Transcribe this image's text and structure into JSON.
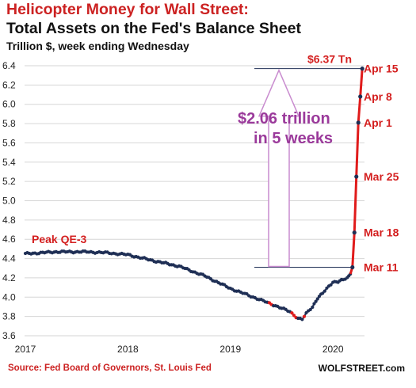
{
  "header": {
    "title": "Helicopter Money for Wall Street:",
    "title2": "Total Assets on the Fed's Balance Sheet",
    "subtitle": "Trillion $, week ending Wednesday"
  },
  "footer": {
    "source": "Source: Fed Board of Governors, St. Louis Fed",
    "brand": "WOLFSTREET.com"
  },
  "colors": {
    "line": "#1f2f55",
    "surge": "#e01b1b",
    "annotation_red": "#d41f1f",
    "arrow": "#c98ccf",
    "arrow_text": "#9b3a9b",
    "grid": "#d6d6d6"
  },
  "annotations": {
    "peak": "Peak QE-3",
    "top_value": "$6.37 Tn",
    "increase_line1": "$2.06 trillion",
    "increase_line2": "in 5 weeks"
  },
  "chart_data": {
    "type": "line",
    "title": "Total Assets on the Fed's Balance Sheet",
    "ylabel": "Trillion $, week ending Wednesday",
    "ylim": [
      3.6,
      6.4
    ],
    "yticks": [
      3.6,
      3.8,
      4.0,
      4.2,
      4.4,
      4.6,
      4.8,
      5.0,
      5.2,
      5.4,
      5.6,
      5.8,
      6.0,
      6.2,
      6.4
    ],
    "xlim": [
      2017.0,
      2020.3
    ],
    "xticks": [
      2017,
      2018,
      2019,
      2020
    ],
    "grid": true,
    "history_anchors": [
      [
        2017.0,
        4.45
      ],
      [
        2017.3,
        4.47
      ],
      [
        2017.6,
        4.47
      ],
      [
        2017.8,
        4.46
      ],
      [
        2018.0,
        4.44
      ],
      [
        2018.2,
        4.39
      ],
      [
        2018.5,
        4.32
      ],
      [
        2018.75,
        4.22
      ],
      [
        2019.0,
        4.09
      ],
      [
        2019.2,
        4.01
      ],
      [
        2019.42,
        3.92
      ],
      [
        2019.58,
        3.85
      ],
      [
        2019.66,
        3.78
      ],
      [
        2019.7,
        3.77
      ],
      [
        2019.74,
        3.83
      ],
      [
        2019.8,
        3.9
      ],
      [
        2019.85,
        3.99
      ],
      [
        2019.9,
        4.04
      ],
      [
        2020.0,
        4.16
      ],
      [
        2020.05,
        4.16
      ],
      [
        2020.1,
        4.18
      ],
      [
        2020.14,
        4.2
      ],
      [
        2020.17,
        4.24
      ]
    ],
    "surge_points": [
      {
        "label": "Mar 11",
        "y": 4.31
      },
      {
        "label": "Mar 18",
        "y": 4.67
      },
      {
        "label": "Mar 25",
        "y": 5.25
      },
      {
        "label": "Apr 1",
        "y": 5.81
      },
      {
        "label": "Apr 8",
        "y": 6.08
      },
      {
        "label": "Apr 15",
        "y": 6.37
      }
    ]
  }
}
